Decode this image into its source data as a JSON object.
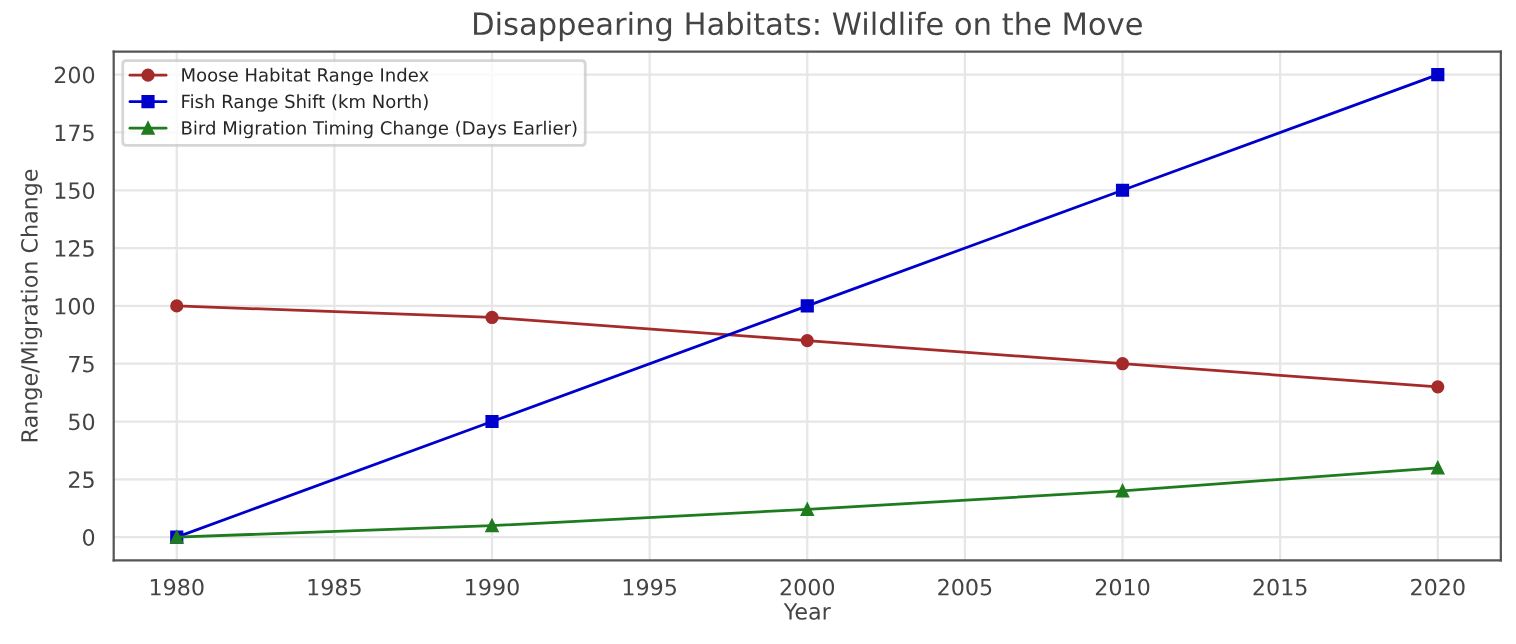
{
  "chart_data": {
    "type": "line",
    "title": "Disappearing Habitats: Wildlife on the Move",
    "xlabel": "Year",
    "ylabel": "Range/Migration Change",
    "x": [
      1980,
      1990,
      2000,
      2010,
      2020
    ],
    "series": [
      {
        "name": "Moose Habitat Range Index",
        "color": "#a52a2a",
        "marker": "circle",
        "values": [
          100,
          95,
          85,
          75,
          65
        ]
      },
      {
        "name": "Fish Range Shift (km North)",
        "color": "#0000cd",
        "marker": "square",
        "values": [
          0,
          50,
          100,
          150,
          200
        ]
      },
      {
        "name": "Bird Migration Timing Change (Days Earlier)",
        "color": "#1e7b1e",
        "marker": "triangle",
        "values": [
          0,
          5,
          12,
          20,
          30
        ]
      }
    ],
    "xlim": [
      1978,
      2022
    ],
    "xticks": [
      1980,
      1985,
      1990,
      1995,
      2000,
      2005,
      2010,
      2015,
      2020
    ],
    "ylim": [
      -10,
      210
    ],
    "yticks": [
      0,
      25,
      50,
      75,
      100,
      125,
      150,
      175,
      200
    ],
    "grid": true,
    "legend": "top left",
    "line_style": "solid"
  }
}
